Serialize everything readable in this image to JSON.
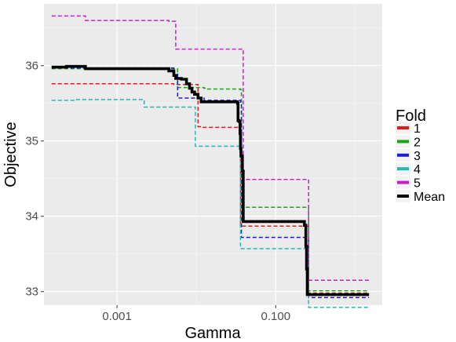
{
  "chart_data": {
    "type": "line",
    "xlabel": "Gamma",
    "ylabel": "Objective",
    "x_scale": "log10",
    "xlim": [
      0.00012,
      2.2
    ],
    "ylim": [
      32.82,
      36.82
    ],
    "x_ticks": [
      0.001,
      0.1
    ],
    "x_tick_labels": [
      "0.001",
      "0.100"
    ],
    "y_ticks": [
      33,
      34,
      35,
      36
    ],
    "y_tick_labels": [
      "33",
      "34",
      "35",
      "36"
    ],
    "grid": true,
    "legend_title": "Fold",
    "legend_position": "right",
    "series": [
      {
        "name": "1",
        "color": "#e41a1c",
        "style": "dashed",
        "x": [
          0.00015,
          0.0052,
          0.0105,
          0.0115,
          0.035,
          0.036,
          0.25,
          0.26,
          1.5
        ],
        "y": [
          35.76,
          35.75,
          35.19,
          35.18,
          35.18,
          33.87,
          33.87,
          32.98,
          32.98
        ]
      },
      {
        "name": "2",
        "color": "#1aa31a",
        "style": "dashed",
        "x": [
          0.00015,
          0.0052,
          0.0058,
          0.0125,
          0.0134,
          0.036,
          0.037,
          0.25,
          0.26,
          1.5
        ],
        "y": [
          35.96,
          35.96,
          35.71,
          35.7,
          35.69,
          35.68,
          34.12,
          34.12,
          33.01,
          33.01
        ]
      },
      {
        "name": "3",
        "color": "#1c1cd6",
        "style": "dashed",
        "x": [
          0.00015,
          0.0022,
          0.0052,
          0.0058,
          0.0115,
          0.0125,
          0.036,
          0.037,
          0.25,
          0.26,
          1.5
        ],
        "y": [
          35.97,
          35.97,
          35.89,
          35.57,
          35.57,
          35.54,
          35.5,
          33.72,
          33.72,
          32.92,
          32.92
        ]
      },
      {
        "name": "4",
        "color": "#1fb8b8",
        "style": "dashed",
        "x": [
          0.00015,
          0.0003,
          0.0019,
          0.0022,
          0.0093,
          0.0097,
          0.035,
          0.036,
          0.25,
          0.26,
          1.5
        ],
        "y": [
          35.54,
          35.55,
          35.55,
          35.45,
          35.45,
          34.93,
          34.93,
          33.57,
          33.57,
          32.79,
          32.79
        ]
      },
      {
        "name": "5",
        "color": "#c51fc5",
        "style": "dashed",
        "x": [
          0.00015,
          0.0004,
          0.0045,
          0.0055,
          0.038,
          0.039,
          0.25,
          0.26,
          1.5
        ],
        "y": [
          36.66,
          36.6,
          36.59,
          36.22,
          36.21,
          34.49,
          34.49,
          33.15,
          33.15
        ]
      },
      {
        "name": "Mean",
        "color": "#000000",
        "style": "solid",
        "x": [
          0.00015,
          0.00023,
          0.0004,
          0.0019,
          0.0045,
          0.0052,
          0.0055,
          0.0065,
          0.0075,
          0.0082,
          0.0088,
          0.0095,
          0.0105,
          0.0115,
          0.012,
          0.025,
          0.033,
          0.0335,
          0.0345,
          0.0355,
          0.036,
          0.0365,
          0.038,
          0.039,
          0.22,
          0.23,
          0.24,
          0.245,
          0.25,
          1.5
        ],
        "y": [
          35.98,
          35.99,
          35.96,
          35.96,
          35.93,
          35.87,
          35.83,
          35.82,
          35.76,
          35.7,
          35.65,
          35.62,
          35.57,
          35.52,
          35.52,
          35.52,
          35.5,
          35.27,
          35.26,
          35.1,
          34.9,
          34.8,
          34.6,
          33.93,
          33.93,
          33.88,
          33.6,
          33.3,
          32.96,
          32.96
        ]
      }
    ]
  }
}
